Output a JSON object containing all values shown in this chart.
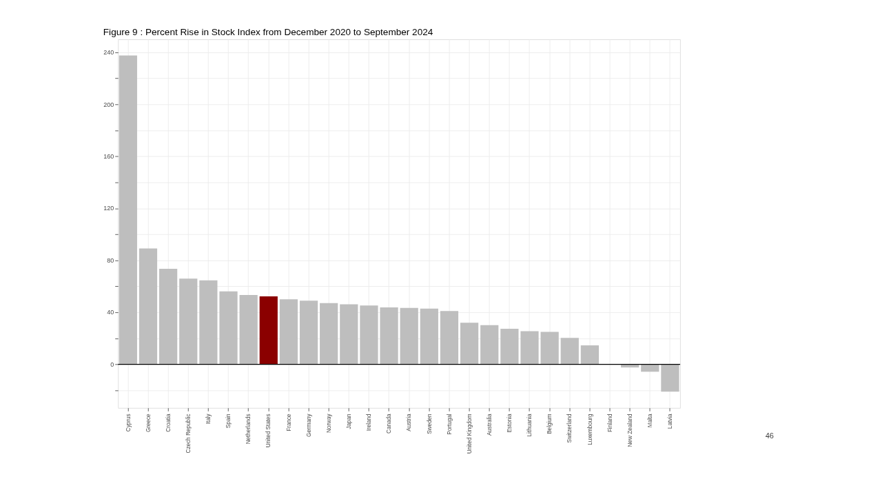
{
  "chart_data": {
    "type": "bar",
    "title": "Figure 9 : Percent Rise in Stock Index from December 2020 to September 2024",
    "categories": [
      "Cyprus",
      "Greece",
      "Croatia",
      "Czech Republic",
      "Italy",
      "Spain",
      "Netherlands",
      "United States",
      "France",
      "Germany",
      "Norway",
      "Japan",
      "Ireland",
      "Canada",
      "Austria",
      "Sweden",
      "Portugal",
      "United Kingdom",
      "Australia",
      "Estonia",
      "Lithuania",
      "Belgium",
      "Switzerland",
      "Luxembourg",
      "Finland",
      "New Zealand",
      "Malta",
      "Latvia"
    ],
    "values": [
      237.6,
      89.1,
      73.5,
      66,
      64.6,
      56.1,
      53.3,
      52.3,
      50,
      49,
      47.1,
      46.2,
      45.3,
      43.8,
      43.4,
      42.9,
      41,
      32,
      30.2,
      27.3,
      25.5,
      25,
      20.3,
      14.6,
      0,
      -2.4,
      -5.7,
      -21
    ],
    "colors": [
      "#bebebe",
      "#bebebe",
      "#bebebe",
      "#bebebe",
      "#bebebe",
      "#bebebe",
      "#bebebe",
      "#8b0000",
      "#bebebe",
      "#bebebe",
      "#bebebe",
      "#bebebe",
      "#bebebe",
      "#bebebe",
      "#bebebe",
      "#bebebe",
      "#bebebe",
      "#bebebe",
      "#bebebe",
      "#bebebe",
      "#bebebe",
      "#bebebe",
      "#bebebe",
      "#bebebe",
      "#bebebe",
      "#bebebe",
      "#bebebe",
      "#bebebe"
    ],
    "ylim": [
      -33.5,
      250
    ],
    "yticks": [
      {
        "value": -20,
        "label": null
      },
      0,
      {
        "value": 20,
        "label": null
      },
      40,
      {
        "value": 60,
        "label": null
      },
      80,
      {
        "value": 100,
        "label": null
      },
      120,
      {
        "value": 140,
        "label": null
      },
      160,
      {
        "value": 180,
        "label": null
      },
      200,
      {
        "value": 220,
        "label": null
      },
      240
    ],
    "grid": true,
    "ref_lines": [
      {
        "axis": "y",
        "value": 0,
        "label": null,
        "color": "#000000"
      }
    ],
    "annotations": [
      "46"
    ]
  }
}
